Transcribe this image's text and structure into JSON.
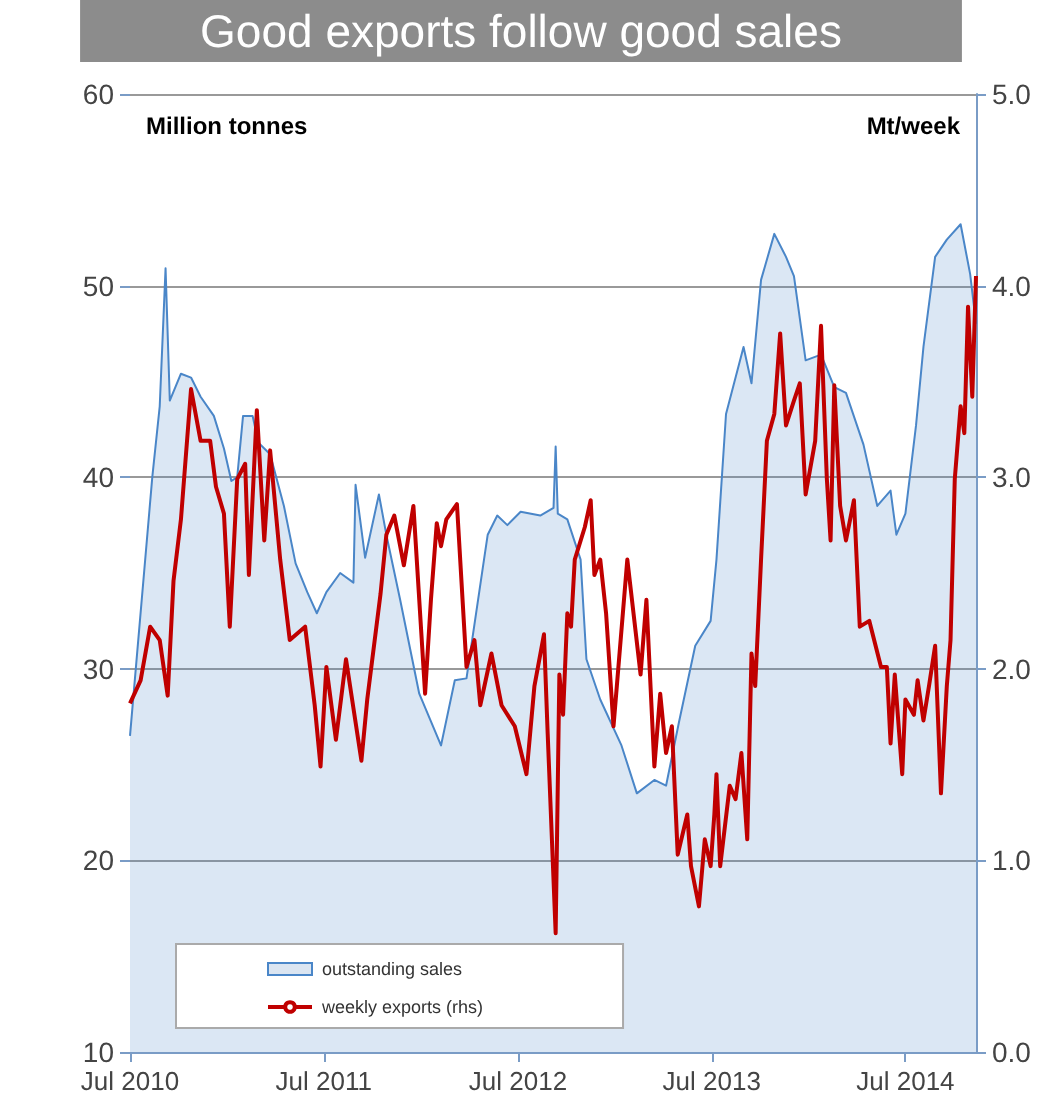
{
  "chart_data": {
    "type": "area",
    "title": "Good exports follow good sales",
    "ylabel": "Million tonnes",
    "y2label": "Mt/week",
    "xlim": [
      "2010-07-01",
      "2014-11-11"
    ],
    "xticks": [
      {
        "value": "2010-07-01",
        "label": "Jul 2010"
      },
      {
        "value": "2011-07-01",
        "label": "Jul 2011"
      },
      {
        "value": "2012-07-01",
        "label": "Jul 2012"
      },
      {
        "value": "2013-07-01",
        "label": "Jul 2013"
      },
      {
        "value": "2014-07-01",
        "label": "Jul 2014"
      }
    ],
    "ylim": [
      10,
      60
    ],
    "yticks": [
      10,
      20,
      30,
      40,
      50,
      60
    ],
    "y2lim": [
      0,
      5
    ],
    "y2ticks": [
      {
        "value": 0,
        "label": "0.0"
      },
      {
        "value": 1,
        "label": "1.0"
      },
      {
        "value": 2,
        "label": "2.0"
      },
      {
        "value": 3,
        "label": "3.0"
      },
      {
        "value": 4,
        "label": "4.0"
      },
      {
        "value": 5,
        "label": "5.0"
      }
    ],
    "grid": "y",
    "legend": "bottom left",
    "series": [
      {
        "name": "outstanding sales",
        "color": "#4a86c8",
        "x": [
          "2010-07-01",
          "2010-08-12",
          "2010-08-26",
          "2010-09-06",
          "2010-09-14",
          "2010-10-05",
          "2010-10-24",
          "2010-11-11",
          "2010-12-06",
          "2010-12-25",
          "2011-01-08",
          "2011-01-19",
          "2011-01-30",
          "2011-02-17",
          "2011-02-28",
          "2011-03-22",
          "2011-04-17",
          "2011-05-09",
          "2011-05-31",
          "2011-06-18",
          "2011-07-06",
          "2011-08-01",
          "2011-08-26",
          "2011-08-30",
          "2011-09-17",
          "2011-10-13",
          "2011-10-27",
          "2011-11-22",
          "2011-12-28",
          "2012-02-07",
          "2012-03-04",
          "2012-03-26",
          "2012-04-28",
          "2012-05-05",
          "2012-05-23",
          "2012-06-11",
          "2012-07-06",
          "2012-08-12",
          "2012-09-06",
          "2012-09-10",
          "2012-09-14",
          "2012-10-02",
          "2012-10-27",
          "2012-11-07",
          "2012-12-03",
          "2013-01-12",
          "2013-02-10",
          "2013-03-15",
          "2013-04-06",
          "2013-05-01",
          "2013-05-31",
          "2013-06-29",
          "2013-07-10",
          "2013-07-28",
          "2013-08-30",
          "2013-09-14",
          "2013-10-02",
          "2013-10-27",
          "2013-11-18",
          "2013-12-03",
          "2013-12-25",
          "2014-01-23",
          "2014-02-17",
          "2014-03-11",
          "2014-04-13",
          "2014-05-09",
          "2014-06-03",
          "2014-06-14",
          "2014-07-01",
          "2014-07-21",
          "2014-08-04",
          "2014-08-26",
          "2014-09-17",
          "2014-10-13",
          "2014-10-31",
          "2014-11-11"
        ],
        "values": [
          26.5,
          40,
          43.7,
          50.9,
          44,
          45.4,
          45.2,
          44.2,
          43.2,
          41.5,
          39.8,
          40,
          43.2,
          43.2,
          41.8,
          41.2,
          38.5,
          35.5,
          34,
          32.9,
          34,
          35,
          34.5,
          39.6,
          35.8,
          39.1,
          37,
          33.6,
          28.7,
          26,
          29.4,
          29.5,
          35.7,
          37,
          38,
          37.5,
          38.2,
          38,
          38.4,
          41.6,
          38.1,
          37.8,
          35.7,
          30.5,
          28.4,
          26,
          23.5,
          24.2,
          23.9,
          27.3,
          31.2,
          32.5,
          35.7,
          43.3,
          46.8,
          44.9,
          50.3,
          52.7,
          51.5,
          50.5,
          46.1,
          46.4,
          44.7,
          44.4,
          41.7,
          38.5,
          39.3,
          37,
          38.1,
          42.7,
          46.8,
          51.5,
          52.4,
          53.2,
          50.6,
          48
        ]
      },
      {
        "name": "weekly exports (rhs)",
        "type": "line",
        "axis": "y2",
        "color": "#c00000",
        "x": [
          "2010-07-01",
          "2010-07-21",
          "2010-08-08",
          "2010-08-26",
          "2010-09-10",
          "2010-09-21",
          "2010-10-05",
          "2010-10-24",
          "2010-11-11",
          "2010-11-29",
          "2010-12-10",
          "2010-12-25",
          "2011-01-05",
          "2011-01-19",
          "2011-02-03",
          "2011-02-10",
          "2011-02-25",
          "2011-03-11",
          "2011-03-22",
          "2011-04-10",
          "2011-04-28",
          "2011-05-27",
          "2011-06-14",
          "2011-06-25",
          "2011-07-06",
          "2011-07-24",
          "2011-08-12",
          "2011-09-10",
          "2011-09-21",
          "2011-10-16",
          "2011-10-27",
          "2011-11-11",
          "2011-11-29",
          "2011-12-17",
          "2012-01-08",
          "2012-01-19",
          "2012-01-30",
          "2012-02-07",
          "2012-02-17",
          "2012-03-08",
          "2012-03-26",
          "2012-04-10",
          "2012-04-21",
          "2012-05-12",
          "2012-05-31",
          "2012-06-25",
          "2012-07-17",
          "2012-08-01",
          "2012-08-19",
          "2012-08-26",
          "2012-09-10",
          "2012-09-17",
          "2012-09-24",
          "2012-10-02",
          "2012-10-09",
          "2012-10-16",
          "2012-11-04",
          "2012-11-15",
          "2012-11-22",
          "2012-12-03",
          "2012-12-14",
          "2012-12-28",
          "2013-01-23",
          "2013-02-17",
          "2013-02-28",
          "2013-03-15",
          "2013-03-26",
          "2013-04-06",
          "2013-04-17",
          "2013-04-28",
          "2013-05-16",
          "2013-05-23",
          "2013-06-07",
          "2013-06-18",
          "2013-06-29",
          "2013-07-06",
          "2013-07-10",
          "2013-07-17",
          "2013-08-04",
          "2013-08-15",
          "2013-08-26",
          "2013-09-06",
          "2013-09-14",
          "2013-09-21",
          "2013-10-02",
          "2013-10-13",
          "2013-10-27",
          "2013-11-07",
          "2013-11-18",
          "2013-12-03",
          "2013-12-14",
          "2013-12-25",
          "2014-01-12",
          "2014-01-23",
          "2014-02-03",
          "2014-02-10",
          "2014-02-17",
          "2014-02-28",
          "2014-03-11",
          "2014-03-26",
          "2014-04-06",
          "2014-04-24",
          "2014-05-16",
          "2014-05-27",
          "2014-06-03",
          "2014-06-11",
          "2014-06-25",
          "2014-07-01",
          "2014-07-17",
          "2014-07-24",
          "2014-08-04",
          "2014-08-15",
          "2014-08-26",
          "2014-09-06",
          "2014-09-17",
          "2014-09-24",
          "2014-10-02",
          "2014-10-13",
          "2014-10-20",
          "2014-10-27",
          "2014-11-04",
          "2014-11-11"
        ],
        "values": [
          1.82,
          1.94,
          2.22,
          2.15,
          1.86,
          2.46,
          2.78,
          3.46,
          3.19,
          3.19,
          2.95,
          2.81,
          2.22,
          2.99,
          3.07,
          2.49,
          3.35,
          2.67,
          3.14,
          2.57,
          2.15,
          2.22,
          1.81,
          1.49,
          2.01,
          1.63,
          2.05,
          1.52,
          1.84,
          2.39,
          2.7,
          2.8,
          2.54,
          2.85,
          1.87,
          2.36,
          2.76,
          2.64,
          2.78,
          2.86,
          2.01,
          2.15,
          1.81,
          2.08,
          1.81,
          1.7,
          1.45,
          1.91,
          2.18,
          1.66,
          0.62,
          1.97,
          1.76,
          2.29,
          2.22,
          2.57,
          2.74,
          2.88,
          2.49,
          2.57,
          2.29,
          1.7,
          2.57,
          1.97,
          2.36,
          1.49,
          1.87,
          1.56,
          1.7,
          1.03,
          1.24,
          0.97,
          0.76,
          1.11,
          0.97,
          1.24,
          1.45,
          0.97,
          1.39,
          1.32,
          1.56,
          1.11,
          2.08,
          1.91,
          2.57,
          3.19,
          3.33,
          3.75,
          3.27,
          3.4,
          3.49,
          2.91,
          3.19,
          3.79,
          2.99,
          2.67,
          3.48,
          2.85,
          2.67,
          2.88,
          2.22,
          2.25,
          2.01,
          2.01,
          1.61,
          1.97,
          1.45,
          1.84,
          1.76,
          1.94,
          1.73,
          1.92,
          2.12,
          1.35,
          1.91,
          2.15,
          2.99,
          3.37,
          3.23,
          3.89,
          3.42,
          4.05
        ]
      }
    ]
  }
}
